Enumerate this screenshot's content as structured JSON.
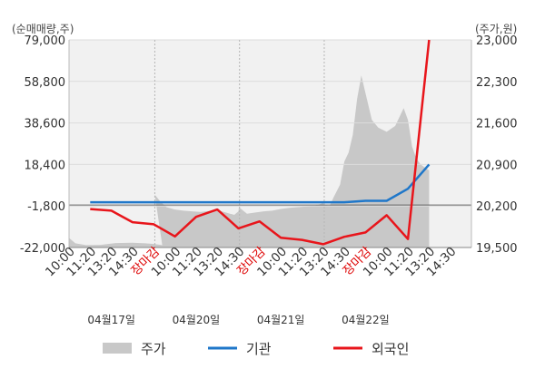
{
  "chart_data": {
    "type": "line",
    "left_axis_unit": "(순매매량,주)",
    "right_axis_unit": "(주가,원)",
    "left_ticks": [
      "79,000",
      "58,800",
      "38,600",
      "18,400",
      "-1,800",
      "-22,000"
    ],
    "right_ticks": [
      "23,000",
      "22,300",
      "21,600",
      "20,900",
      "20,200",
      "19,500"
    ],
    "ylim_left": [
      -22000,
      79000
    ],
    "ylim_right": [
      19500,
      23000
    ],
    "x_ticks": [
      {
        "label": "10:00",
        "red": false
      },
      {
        "label": "11:20",
        "red": false
      },
      {
        "label": "13:20",
        "red": false
      },
      {
        "label": "14:30",
        "red": false
      },
      {
        "label": "장마감",
        "red": true
      },
      {
        "label": "10:00",
        "red": false
      },
      {
        "label": "11:20",
        "red": false
      },
      {
        "label": "13:20",
        "red": false
      },
      {
        "label": "14:30",
        "red": false
      },
      {
        "label": "장마감",
        "red": true
      },
      {
        "label": "10:00",
        "red": false
      },
      {
        "label": "11:20",
        "red": false
      },
      {
        "label": "13:20",
        "red": false
      },
      {
        "label": "14:30",
        "red": false
      },
      {
        "label": "장마감",
        "red": true
      },
      {
        "label": "10:00",
        "red": false
      },
      {
        "label": "11:20",
        "red": false
      },
      {
        "label": "13:20",
        "red": false
      },
      {
        "label": "14:30",
        "red": false
      }
    ],
    "dates": [
      "04월17일",
      "04월20일",
      "04월21일",
      "04월22일"
    ],
    "legend": [
      {
        "name": "주가",
        "color": "#c8c8c8",
        "kind": "area"
      },
      {
        "name": "기관",
        "color": "#1f77c9",
        "kind": "line"
      },
      {
        "name": "외국인",
        "color": "#e8151b",
        "kind": "line"
      }
    ],
    "series": [
      {
        "name": "기관",
        "axis": "left",
        "color": "#1f77c9",
        "x": [
          1,
          2,
          3,
          4,
          5,
          6,
          7,
          8,
          9,
          10,
          11,
          12,
          13,
          14,
          15,
          16,
          17
        ],
        "values": [
          0,
          0,
          0,
          0,
          0,
          0,
          0,
          0,
          0,
          0,
          0,
          0,
          0,
          700,
          700,
          6600,
          18400
        ]
      },
      {
        "name": "외국인",
        "axis": "left",
        "color": "#e8151b",
        "x": [
          1,
          2,
          3,
          4,
          5,
          6,
          7,
          8,
          9,
          10,
          11,
          12,
          13,
          14,
          15,
          16,
          17
        ],
        "values": [
          -3300,
          -4100,
          -9700,
          -10700,
          -16600,
          -7100,
          -3500,
          -12700,
          -9300,
          -17300,
          -18300,
          -20400,
          -16800,
          -14700,
          -6300,
          -17900,
          79000
        ]
      },
      {
        "name": "주가",
        "axis": "right",
        "color": "#c8c8c8",
        "x": [
          0,
          0.3,
          0.8,
          1.5,
          2.2,
          3,
          3.6,
          4,
          4.4,
          4.05,
          4.3,
          4.6,
          5,
          5.4,
          5.8,
          6.2,
          6.6,
          7,
          7.4,
          7.8,
          8,
          8.02,
          8.4,
          8.8,
          9.2,
          9.6,
          10,
          10.4,
          10.8,
          11.2,
          11.6,
          12,
          12.02,
          12.3,
          12.5,
          12.8,
          13,
          13.2,
          13.4,
          13.6,
          13.8,
          14,
          14.3,
          14.6,
          15,
          15.4,
          15.8,
          16,
          16.2,
          16.4,
          16.6,
          16.8,
          17
        ],
        "values": [
          19660,
          19570,
          19540,
          19545,
          19575,
          19580,
          19570,
          19560,
          19540,
          20390,
          20280,
          20180,
          20140,
          20120,
          20110,
          20100,
          20115,
          20130,
          20090,
          20050,
          20110,
          20180,
          20070,
          20090,
          20110,
          20120,
          20150,
          20170,
          20180,
          20190,
          20200,
          20250,
          20220,
          20200,
          20350,
          20560,
          20950,
          21100,
          21400,
          22000,
          22400,
          22100,
          21650,
          21520,
          21450,
          21550,
          21850,
          21650,
          21200,
          21000,
          20900,
          20850,
          20800
        ]
      }
    ]
  }
}
